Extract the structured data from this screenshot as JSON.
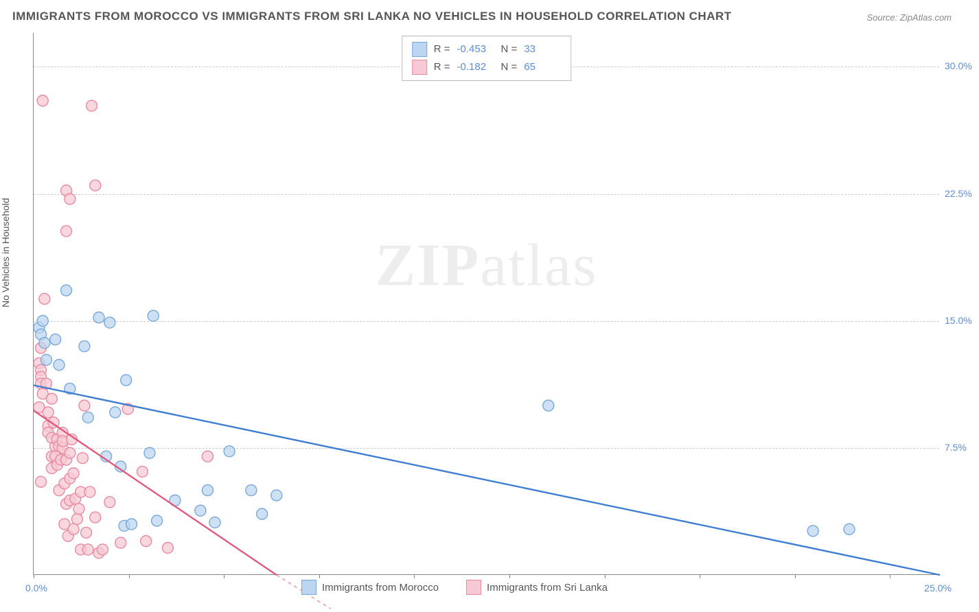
{
  "title": "IMMIGRANTS FROM MOROCCO VS IMMIGRANTS FROM SRI LANKA NO VEHICLES IN HOUSEHOLD CORRELATION CHART",
  "source": "Source: ZipAtlas.com",
  "ylabel": "No Vehicles in Household",
  "watermark_bold": "ZIP",
  "watermark_light": "atlas",
  "chart": {
    "type": "scatter",
    "xlim": [
      0,
      25
    ],
    "ylim": [
      0,
      32
    ],
    "x_tick_positions_pct": [
      0,
      10.5,
      21,
      31.5,
      42,
      52.5,
      63,
      73.5,
      84,
      94.5
    ],
    "x_first_label": "0.0%",
    "x_last_label": "25.0%",
    "y_ticks": [
      {
        "value": 7.5,
        "label": "7.5%"
      },
      {
        "value": 15.0,
        "label": "15.0%"
      },
      {
        "value": 22.5,
        "label": "22.5%"
      },
      {
        "value": 30.0,
        "label": "30.0%"
      }
    ],
    "series": [
      {
        "name": "Immigrants from Morocco",
        "fill": "#bcd5f0",
        "stroke": "#7aa8dc",
        "line_color": "#3f7ed2",
        "r_label": "R =",
        "r_value": "-0.453",
        "n_label": "N =",
        "n_value": "33",
        "trend": {
          "x1": 0,
          "y1": 11.2,
          "x2": 25,
          "y2": 0.0
        },
        "points": [
          [
            0.15,
            14.6
          ],
          [
            0.2,
            14.2
          ],
          [
            0.25,
            15.0
          ],
          [
            0.3,
            13.7
          ],
          [
            0.35,
            12.7
          ],
          [
            0.6,
            13.9
          ],
          [
            0.7,
            12.4
          ],
          [
            0.9,
            16.8
          ],
          [
            1.0,
            11.0
          ],
          [
            1.4,
            13.5
          ],
          [
            1.8,
            15.2
          ],
          [
            2.1,
            14.9
          ],
          [
            2.25,
            9.6
          ],
          [
            2.55,
            11.5
          ],
          [
            3.3,
            15.3
          ],
          [
            1.5,
            9.3
          ],
          [
            2.0,
            7.0
          ],
          [
            2.4,
            6.4
          ],
          [
            2.5,
            2.9
          ],
          [
            2.7,
            3.0
          ],
          [
            3.2,
            7.2
          ],
          [
            3.4,
            3.2
          ],
          [
            3.9,
            4.4
          ],
          [
            4.6,
            3.8
          ],
          [
            4.8,
            5.0
          ],
          [
            5.0,
            3.1
          ],
          [
            5.4,
            7.3
          ],
          [
            6.0,
            5.0
          ],
          [
            6.3,
            3.6
          ],
          [
            6.7,
            4.7
          ],
          [
            14.2,
            10.0
          ],
          [
            21.5,
            2.6
          ],
          [
            22.5,
            2.7
          ]
        ]
      },
      {
        "name": "Immigrants from Sri Lanka",
        "fill": "#f6c9d4",
        "stroke": "#e98aa3",
        "line_color": "#e05a7d",
        "r_label": "R =",
        "r_value": "-0.182",
        "n_label": "N =",
        "n_value": "65",
        "trend": {
          "x1": 0,
          "y1": 9.7,
          "x2": 6.7,
          "y2": 0.0
        },
        "trend_dashed_ext": {
          "x1": 6.7,
          "y1": 0.0,
          "x2": 8.2,
          "y2": -2.0
        },
        "points": [
          [
            0.25,
            28.0
          ],
          [
            1.6,
            27.7
          ],
          [
            0.9,
            22.7
          ],
          [
            1.0,
            22.2
          ],
          [
            1.7,
            23.0
          ],
          [
            0.9,
            20.3
          ],
          [
            0.3,
            16.3
          ],
          [
            0.2,
            13.4
          ],
          [
            0.15,
            12.5
          ],
          [
            0.2,
            12.1
          ],
          [
            0.2,
            11.7
          ],
          [
            0.2,
            11.3
          ],
          [
            0.15,
            9.9
          ],
          [
            0.2,
            5.5
          ],
          [
            0.25,
            10.7
          ],
          [
            0.35,
            11.3
          ],
          [
            0.4,
            9.6
          ],
          [
            0.4,
            8.8
          ],
          [
            0.4,
            8.4
          ],
          [
            0.5,
            10.4
          ],
          [
            0.5,
            8.1
          ],
          [
            0.5,
            7.0
          ],
          [
            0.5,
            6.3
          ],
          [
            0.55,
            9.0
          ],
          [
            0.6,
            7.6
          ],
          [
            0.6,
            7.0
          ],
          [
            0.65,
            8.0
          ],
          [
            0.65,
            6.5
          ],
          [
            0.7,
            7.6
          ],
          [
            0.7,
            5.0
          ],
          [
            0.75,
            6.8
          ],
          [
            0.8,
            8.4
          ],
          [
            0.8,
            7.5
          ],
          [
            0.8,
            7.9
          ],
          [
            0.85,
            5.4
          ],
          [
            0.85,
            3.0
          ],
          [
            0.9,
            6.8
          ],
          [
            0.9,
            4.2
          ],
          [
            0.95,
            2.3
          ],
          [
            1.0,
            7.2
          ],
          [
            1.0,
            5.7
          ],
          [
            1.0,
            4.4
          ],
          [
            1.05,
            8.0
          ],
          [
            1.1,
            6.0
          ],
          [
            1.1,
            2.7
          ],
          [
            1.15,
            4.5
          ],
          [
            1.2,
            3.3
          ],
          [
            1.25,
            3.9
          ],
          [
            1.3,
            1.5
          ],
          [
            1.3,
            4.9
          ],
          [
            1.35,
            6.9
          ],
          [
            1.4,
            10.0
          ],
          [
            1.45,
            2.5
          ],
          [
            1.5,
            1.5
          ],
          [
            1.55,
            4.9
          ],
          [
            1.7,
            3.4
          ],
          [
            1.8,
            1.3
          ],
          [
            1.9,
            1.5
          ],
          [
            2.1,
            4.3
          ],
          [
            2.4,
            1.9
          ],
          [
            2.6,
            9.8
          ],
          [
            3.0,
            6.1
          ],
          [
            3.1,
            2.0
          ],
          [
            3.7,
            1.6
          ],
          [
            4.8,
            7.0
          ]
        ]
      }
    ]
  }
}
